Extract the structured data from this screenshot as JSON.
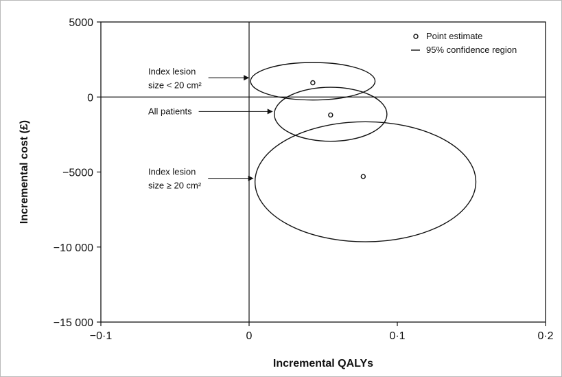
{
  "chart_data": {
    "type": "scatter",
    "xlabel": "Incremental QALYs",
    "ylabel": "Incremental cost (£)",
    "xlim": [
      -0.1,
      0.2
    ],
    "ylim": [
      -15000,
      5000
    ],
    "x_ticks": [
      {
        "value": -0.1,
        "label": "−0·1"
      },
      {
        "value": 0,
        "label": "0"
      },
      {
        "value": 0.1,
        "label": "0·1"
      },
      {
        "value": 0.2,
        "label": "0·2"
      }
    ],
    "y_ticks": [
      {
        "value": 5000,
        "label": "5000"
      },
      {
        "value": 0,
        "label": "0"
      },
      {
        "value": -5000,
        "label": "−5000"
      },
      {
        "value": -10000,
        "label": "−10 000"
      },
      {
        "value": -15000,
        "label": "−15 000"
      }
    ],
    "legend": {
      "placement": "top-right",
      "items": [
        {
          "symbol": "circle",
          "label": "Point estimate"
        },
        {
          "symbol": "line",
          "label": "95% confidence region"
        }
      ]
    },
    "series": [
      {
        "label_lines": [
          "Index lesion",
          "size < 20 cm²"
        ],
        "point": {
          "x": 0.043,
          "y": 950
        },
        "ellipse": {
          "cx": 0.043,
          "cy": 1050,
          "rx": 0.042,
          "ry": 1250
        }
      },
      {
        "label_lines": [
          "All patients"
        ],
        "point": {
          "x": 0.055,
          "y": -1200
        },
        "ellipse": {
          "cx": 0.055,
          "cy": -1150,
          "rx": 0.038,
          "ry": 1800
        }
      },
      {
        "label_lines": [
          "Index lesion",
          "size ≥ 20 cm²"
        ],
        "point": {
          "x": 0.077,
          "y": -5300
        },
        "ellipse": {
          "cx": 0.0785,
          "cy": -5650,
          "rx": 0.0745,
          "ry": 4000
        }
      }
    ],
    "reference_lines": [
      {
        "axis": "x",
        "value": 0
      },
      {
        "axis": "y",
        "value": 0
      }
    ],
    "grid": false
  }
}
